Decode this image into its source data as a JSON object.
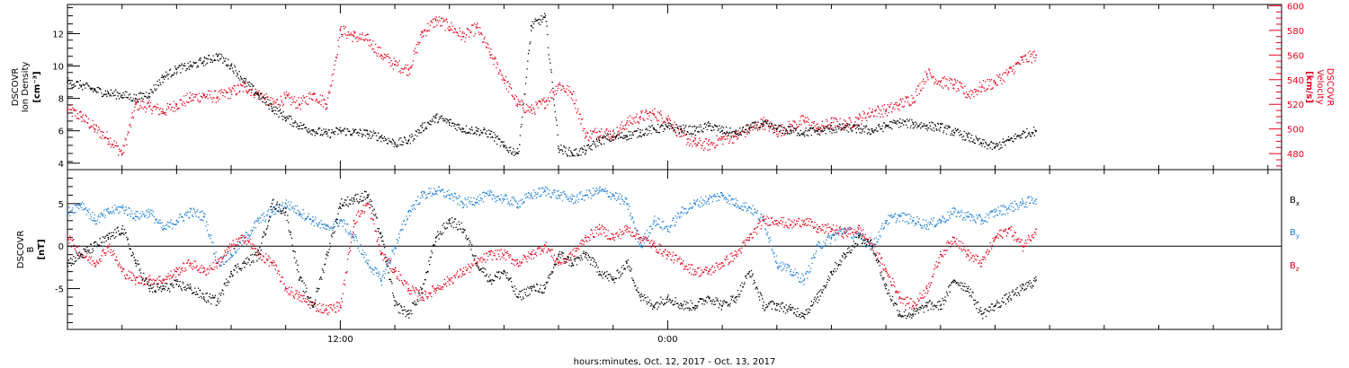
{
  "figure": {
    "xlabel": "hours:minutes, Oct. 12, 2017 - Oct. 13, 2017"
  },
  "colors": {
    "black": "#000000",
    "blue": "#1e7ed6",
    "red": "#e3001b"
  },
  "chart_data": [
    {
      "type": "scatter",
      "panel": "plasma",
      "ylabel_left": [
        "DSCOVR",
        "Ion Density",
        "[cm⁻³]"
      ],
      "ylabel_right": [
        "DSCOVR",
        "Velocity",
        "[km/s]"
      ],
      "x_unit": "hours from Oct 12 00:00",
      "xlim": [
        2,
        46.5
      ],
      "x_ticks": [
        {
          "x": 12,
          "label": "12:00"
        },
        {
          "x": 24,
          "label": "0:00"
        }
      ],
      "y_left": {
        "ylim": [
          3.6,
          13.8
        ],
        "ticks": [
          4,
          6,
          8,
          10,
          12
        ]
      },
      "y_right": {
        "ylim": [
          467,
          601
        ],
        "ticks": [
          480,
          500,
          520,
          540,
          560,
          580,
          600
        ]
      },
      "series": [
        {
          "color": "black",
          "axis": "left",
          "quantity": "ion density",
          "x": [
            2.0,
            2.5,
            3.0,
            3.5,
            4.0,
            4.5,
            5.0,
            5.5,
            6.0,
            6.5,
            7.0,
            7.5,
            8.0,
            8.5,
            9.0,
            9.5,
            10.0,
            10.5,
            11.0,
            11.5,
            12.0,
            12.5,
            13.0,
            13.5,
            14.0,
            14.5,
            15.0,
            15.5,
            16.0,
            16.5,
            17.0,
            17.5,
            18.0,
            18.5,
            19.0,
            19.5,
            20.0,
            20.5,
            21.0,
            21.5,
            22.0,
            22.5,
            23.0,
            23.5,
            24.0,
            24.5,
            25.0,
            25.5,
            26.0,
            26.5,
            27.0,
            27.5,
            28.0,
            28.5,
            29.0,
            29.5,
            30.0,
            30.5,
            31.0,
            31.5,
            32.0,
            32.5,
            33.0,
            33.5,
            34.0,
            34.5,
            35.0,
            35.5,
            36.0,
            36.5,
            37.0,
            37.5
          ],
          "y": [
            9.0,
            8.8,
            8.5,
            8.3,
            8.2,
            8.0,
            8.3,
            9.3,
            9.8,
            10.0,
            10.3,
            10.6,
            10.0,
            9.0,
            8.2,
            7.4,
            6.8,
            6.3,
            6.0,
            5.8,
            6.0,
            5.9,
            5.8,
            5.6,
            5.2,
            5.4,
            6.2,
            6.8,
            6.5,
            6.1,
            6.0,
            5.8,
            5.0,
            4.6,
            12.5,
            13.0,
            4.9,
            4.6,
            4.8,
            5.4,
            5.6,
            5.7,
            5.9,
            6.1,
            6.2,
            6.1,
            6.0,
            6.3,
            6.0,
            5.8,
            6.2,
            6.4,
            6.1,
            6.0,
            5.9,
            6.0,
            6.1,
            6.2,
            6.1,
            6.0,
            6.3,
            6.5,
            6.4,
            6.3,
            6.2,
            5.9,
            5.6,
            5.2,
            5.0,
            5.4,
            5.8,
            6.0
          ]
        },
        {
          "color": "red",
          "axis": "right",
          "quantity": "velocity",
          "x": [
            2.0,
            2.5,
            3.0,
            3.5,
            4.0,
            4.5,
            5.0,
            5.5,
            6.0,
            6.5,
            7.0,
            7.5,
            8.0,
            8.5,
            9.0,
            9.5,
            10.0,
            10.5,
            11.0,
            11.5,
            12.0,
            12.5,
            13.0,
            13.5,
            14.0,
            14.5,
            15.0,
            15.5,
            16.0,
            16.5,
            17.0,
            17.5,
            18.0,
            18.5,
            19.0,
            19.5,
            20.0,
            20.5,
            21.0,
            21.5,
            22.0,
            22.5,
            23.0,
            23.5,
            24.0,
            24.5,
            25.0,
            25.5,
            26.0,
            26.5,
            27.0,
            27.5,
            28.0,
            28.5,
            29.0,
            29.5,
            30.0,
            30.5,
            31.0,
            31.5,
            32.0,
            32.5,
            33.0,
            33.5,
            34.0,
            34.5,
            35.0,
            35.5,
            36.0,
            36.5,
            37.0,
            37.5
          ],
          "y": [
            515,
            510,
            500,
            492,
            480,
            520,
            518,
            514,
            520,
            525,
            527,
            526,
            530,
            534,
            528,
            520,
            525,
            520,
            528,
            520,
            580,
            575,
            572,
            560,
            552,
            548,
            578,
            588,
            583,
            575,
            582,
            560,
            540,
            520,
            515,
            522,
            536,
            528,
            494,
            498,
            495,
            505,
            510,
            512,
            508,
            494,
            488,
            487,
            492,
            494,
            500,
            505,
            498,
            502,
            507,
            500,
            505,
            503,
            508,
            514,
            515,
            520,
            525,
            545,
            538,
            536,
            528,
            534,
            538,
            546,
            556,
            560
          ]
        }
      ]
    },
    {
      "type": "scatter",
      "panel": "magnetic field",
      "ylabel_left": [
        "DSCOVR",
        "B",
        "[nT]"
      ],
      "x_unit": "hours from Oct 12 00:00",
      "xlim": [
        2,
        46.5
      ],
      "x_ticks": [
        {
          "x": 12,
          "label": "12:00"
        },
        {
          "x": 24,
          "label": "0:00"
        }
      ],
      "ylim": [
        -9.8,
        9.0
      ],
      "y_ticks": [
        -5,
        0,
        5
      ],
      "zero_line": true,
      "legend": {
        "placement": "right",
        "items": [
          {
            "main": "B",
            "sub": "x",
            "color": "black"
          },
          {
            "main": "B",
            "sub": "y",
            "color": "blue"
          },
          {
            "main": "B",
            "sub": "z",
            "color": "red"
          }
        ]
      },
      "series": [
        {
          "color": "black",
          "component": "Bx",
          "x": [
            2.0,
            2.5,
            3.0,
            3.5,
            4.0,
            4.5,
            5.0,
            5.5,
            6.0,
            6.5,
            7.0,
            7.5,
            8.0,
            8.5,
            9.0,
            9.5,
            10.0,
            10.5,
            11.0,
            11.5,
            12.0,
            12.5,
            13.0,
            13.5,
            14.0,
            14.5,
            15.0,
            15.5,
            16.0,
            16.5,
            17.0,
            17.5,
            18.0,
            18.5,
            19.0,
            19.5,
            20.0,
            20.5,
            21.0,
            21.5,
            22.0,
            22.5,
            23.0,
            23.5,
            24.0,
            24.5,
            25.0,
            25.5,
            26.0,
            26.5,
            27.0,
            27.5,
            28.0,
            28.5,
            29.0,
            29.5,
            30.0,
            30.5,
            31.0,
            31.5,
            32.0,
            32.5,
            33.0,
            33.5,
            34.0,
            34.5,
            35.0,
            35.5,
            36.0,
            36.5,
            37.0,
            37.5
          ],
          "y": [
            -2,
            -1,
            0,
            1,
            2,
            -2,
            -5,
            -5,
            -4.5,
            -5,
            -6,
            -6.5,
            -3,
            -2,
            -1,
            5,
            4,
            -4,
            -7,
            -1,
            5,
            5.5,
            6,
            1,
            -7,
            -8,
            -5,
            1,
            3,
            2,
            -2,
            -4,
            -3,
            -6,
            -5,
            -5,
            -1,
            -2,
            -1,
            -3,
            -4,
            -2,
            -6,
            -7,
            -6,
            -7,
            -7,
            -6,
            -7,
            -6,
            -3,
            -7,
            -7,
            -7.5,
            -8,
            -6,
            -3,
            -1,
            1,
            0,
            -5,
            -8,
            -8,
            -7,
            -7,
            -4,
            -5,
            -8,
            -7,
            -6,
            -5,
            -4
          ]
        },
        {
          "color": "blue",
          "component": "By",
          "x": [
            2.0,
            2.5,
            3.0,
            3.5,
            4.0,
            4.5,
            5.0,
            5.5,
            6.0,
            6.5,
            7.0,
            7.5,
            8.0,
            8.5,
            9.0,
            9.5,
            10.0,
            10.5,
            11.0,
            11.5,
            12.0,
            12.5,
            13.0,
            13.5,
            14.0,
            14.5,
            15.0,
            15.5,
            16.0,
            16.5,
            17.0,
            17.5,
            18.0,
            18.5,
            19.0,
            19.5,
            20.0,
            20.5,
            21.0,
            21.5,
            22.0,
            22.5,
            23.0,
            23.5,
            24.0,
            24.5,
            25.0,
            25.5,
            26.0,
            26.5,
            27.0,
            27.5,
            28.0,
            28.5,
            29.0,
            29.5,
            30.0,
            30.5,
            31.0,
            31.5,
            32.0,
            32.5,
            33.0,
            33.5,
            34.0,
            34.5,
            35.0,
            35.5,
            36.0,
            36.5,
            37.0,
            37.5
          ],
          "y": [
            4,
            5,
            3,
            4,
            4.5,
            3.5,
            4,
            2,
            3,
            4,
            3.5,
            -2,
            -1,
            1,
            3,
            4,
            5,
            4,
            3,
            2,
            3,
            1,
            -2,
            -4,
            0,
            4,
            6,
            6.5,
            6,
            5,
            5.5,
            6,
            5.5,
            5,
            6,
            6.5,
            6,
            5.5,
            6,
            6.5,
            6,
            5,
            0,
            3,
            2,
            4,
            5,
            5.5,
            6,
            5,
            4.5,
            3,
            -2,
            -3,
            -4,
            0,
            1,
            2,
            1,
            0,
            3,
            3.5,
            3,
            2.5,
            3,
            4,
            3.5,
            3,
            4,
            4.5,
            5,
            5.5
          ]
        },
        {
          "color": "red",
          "component": "Bz",
          "x": [
            2.0,
            2.5,
            3.0,
            3.5,
            4.0,
            4.5,
            5.0,
            5.5,
            6.0,
            6.5,
            7.0,
            7.5,
            8.0,
            8.5,
            9.0,
            9.5,
            10.0,
            10.5,
            11.0,
            11.5,
            12.0,
            12.5,
            13.0,
            13.5,
            14.0,
            14.5,
            15.0,
            15.5,
            16.0,
            16.5,
            17.0,
            17.5,
            18.0,
            18.5,
            19.0,
            19.5,
            20.0,
            20.5,
            21.0,
            21.5,
            22.0,
            22.5,
            23.0,
            23.5,
            24.0,
            24.5,
            25.0,
            25.5,
            26.0,
            26.5,
            27.0,
            27.5,
            28.0,
            28.5,
            29.0,
            29.5,
            30.0,
            30.5,
            31.0,
            31.5,
            32.0,
            32.5,
            33.0,
            33.5,
            34.0,
            34.5,
            35.0,
            35.5,
            36.0,
            36.5,
            37.0,
            37.5
          ],
          "y": [
            1,
            -1,
            -2,
            0,
            -3,
            -4,
            -4,
            -4,
            -3,
            -2,
            -3,
            -2,
            0,
            1,
            -1,
            -2,
            -5,
            -6,
            -7,
            -7.5,
            -7,
            3,
            5,
            -1,
            -3,
            -5,
            -6,
            -5,
            -4,
            -3,
            -2,
            -1,
            -1,
            -2,
            -1,
            0,
            -2,
            -1,
            1,
            2,
            1,
            2,
            1,
            0,
            -1,
            -2,
            -3,
            -3,
            -2,
            -1,
            1,
            3,
            3,
            2.5,
            3,
            2,
            2,
            1.5,
            2,
            0,
            -3,
            -6,
            -7,
            -5,
            -1,
            1,
            -1,
            -2,
            1,
            2,
            0,
            2
          ]
        }
      ]
    }
  ]
}
